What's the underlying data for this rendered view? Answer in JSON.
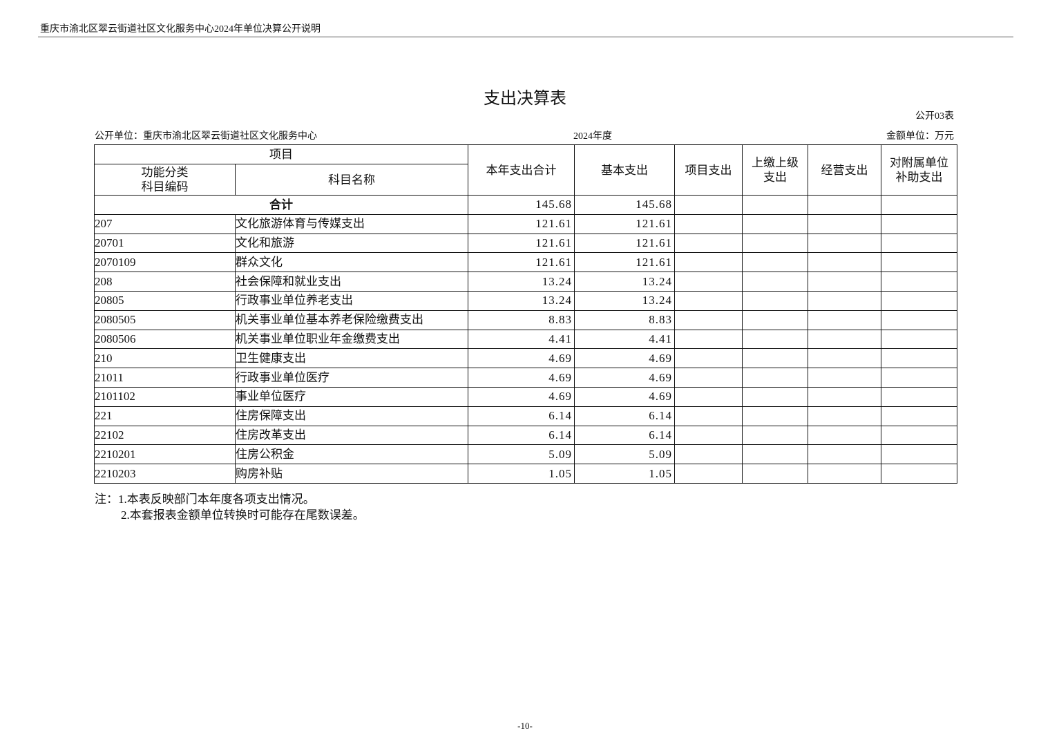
{
  "header": {
    "running_title": "重庆市渝北区翠云街道社区文化服务中心2024年单位决算公开说明",
    "page_number": "-10-"
  },
  "title": "支出决算表",
  "form_code": "公开03表",
  "unit": "公开单位：重庆市渝北区翠云街道社区文化服务中心",
  "year": "2024年度",
  "currency_unit": "金额单位：万元",
  "table": {
    "columns": {
      "item": "项目",
      "code": "功能分类\n科目编码",
      "name": "科目名称",
      "total": "本年支出合计",
      "basic": "基本支出",
      "project": "项目支出",
      "upper": "上缴上级\n支出",
      "business": "经营支出",
      "subsidy": "对附属单位\n补助支出"
    },
    "total_row": {
      "label": "合计",
      "total": "145.68",
      "basic": "145.68"
    },
    "rows": [
      [
        "207",
        "文化旅游体育与传媒支出",
        "121.61",
        "121.61"
      ],
      [
        "20701",
        "文化和旅游",
        "121.61",
        "121.61"
      ],
      [
        "2070109",
        "群众文化",
        "121.61",
        "121.61"
      ],
      [
        "208",
        "社会保障和就业支出",
        "13.24",
        "13.24"
      ],
      [
        "20805",
        "行政事业单位养老支出",
        "13.24",
        "13.24"
      ],
      [
        "2080505",
        "机关事业单位基本养老保险缴费支出",
        "8.83",
        "8.83"
      ],
      [
        "2080506",
        "机关事业单位职业年金缴费支出",
        "4.41",
        "4.41"
      ],
      [
        "210",
        "卫生健康支出",
        "4.69",
        "4.69"
      ],
      [
        "21011",
        "行政事业单位医疗",
        "4.69",
        "4.69"
      ],
      [
        "2101102",
        "事业单位医疗",
        "4.69",
        "4.69"
      ],
      [
        "221",
        "住房保障支出",
        "6.14",
        "6.14"
      ],
      [
        "22102",
        "住房改革支出",
        "6.14",
        "6.14"
      ],
      [
        "2210201",
        "住房公积金",
        "5.09",
        "5.09"
      ],
      [
        "2210203",
        "购房补贴",
        "1.05",
        "1.05"
      ]
    ]
  },
  "notes": [
    "注：1.本表反映部门本年度各项支出情况。",
    "2.本套报表金额单位转换时可能存在尾数误差。"
  ]
}
